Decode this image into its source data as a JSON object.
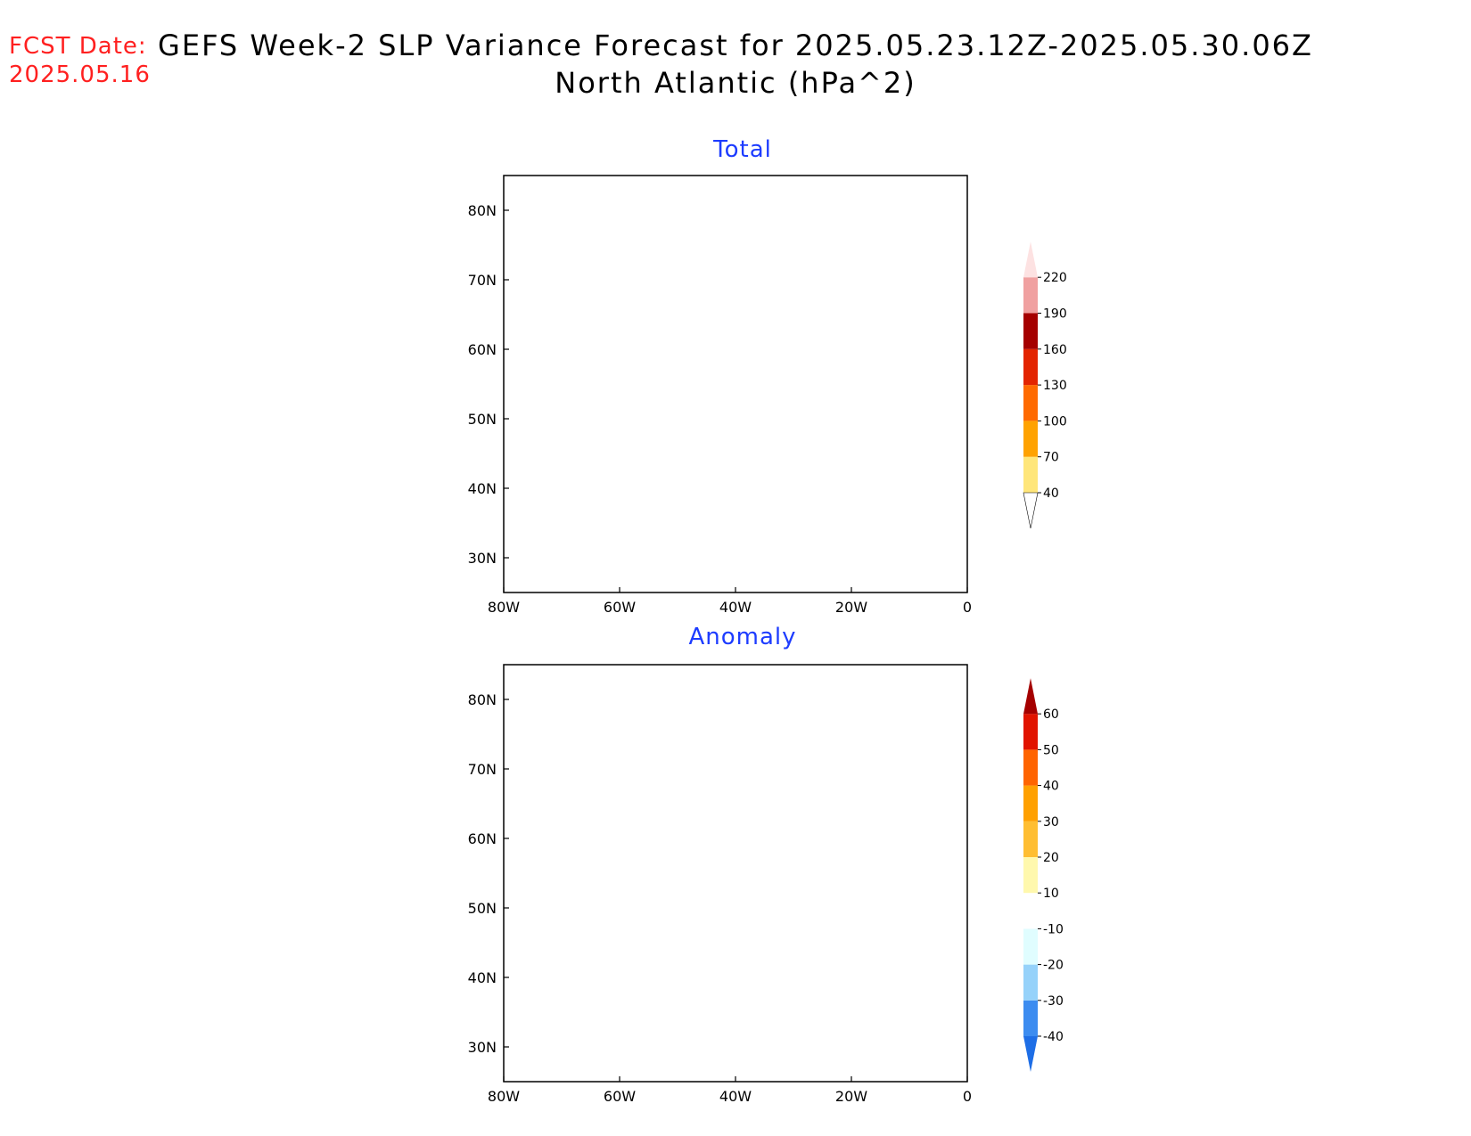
{
  "header": {
    "fcst_label": "FCST Date:",
    "fcst_date": "2025.05.16",
    "title_line1": "GEFS Week-2 SLP Variance Forecast for 2025.05.23.12Z-2025.05.30.06Z",
    "title_line2": "North Atlantic (hPa^2)"
  },
  "axes": {
    "lat_labels": [
      "80N",
      "70N",
      "60N",
      "50N",
      "40N",
      "30N"
    ],
    "lon_labels": [
      "80W",
      "60W",
      "40W",
      "20W",
      "0"
    ],
    "lat_range": [
      25,
      85
    ],
    "lon_range": [
      -80,
      0
    ]
  },
  "panels": {
    "total": {
      "title": "Total",
      "colorbar": {
        "levels": [
          "40",
          "70",
          "100",
          "130",
          "160",
          "190",
          "220"
        ],
        "colors": [
          "#ffe67a",
          "#ffa200",
          "#ff6a00",
          "#e32400",
          "#a50000",
          "#f0a0a0",
          "#fde2e2"
        ]
      }
    },
    "anomaly": {
      "title": "Anomaly",
      "colorbar": {
        "levels": [
          "-40",
          "-30",
          "-20",
          "-10",
          "10",
          "20",
          "30",
          "40",
          "50",
          "60"
        ],
        "colors": [
          "#1e6ee6",
          "#3c8cf0",
          "#96d2fa",
          "#e0fdff",
          "#ffffff",
          "#fff8ad",
          "#ffbe32",
          "#ffa000",
          "#ff6400",
          "#e11400",
          "#a50000"
        ]
      }
    }
  }
}
